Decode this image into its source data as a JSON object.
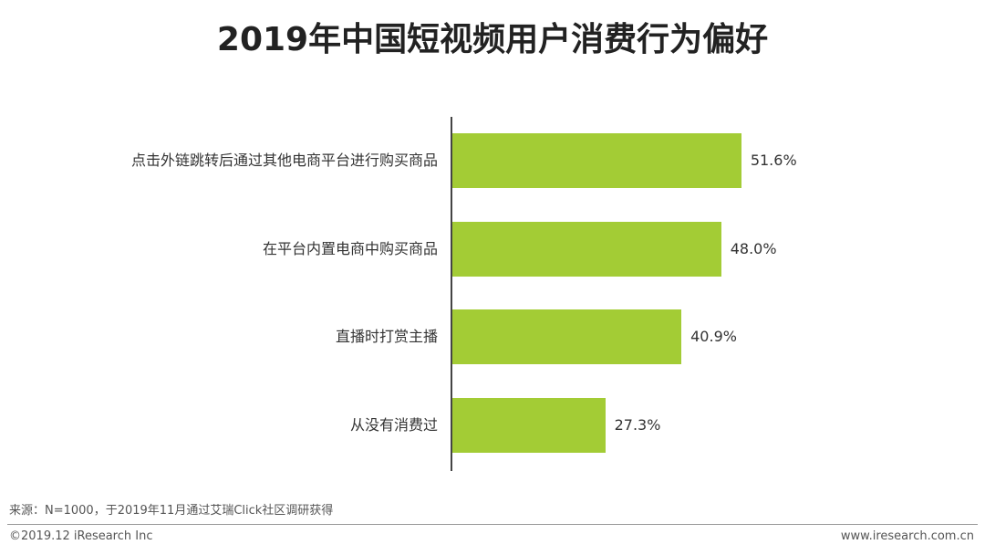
{
  "chart_data": {
    "type": "bar",
    "orientation": "horizontal",
    "title": "2019年中国短视频用户消费行为偏好",
    "categories": [
      "点击外链跳转后通过其他电商平台进行购买商品",
      "在平台内置电商中购买商品",
      "直播时打赏主播",
      "从没有消费过"
    ],
    "values": [
      51.6,
      48.0,
      40.9,
      27.3
    ],
    "value_labels": [
      "51.6%",
      "48.0%",
      "40.9%",
      "27.3%"
    ],
    "color": "#a3cc35",
    "source": "来源：N=1000，于2019年11月通过艾瑞Click社区调研获得",
    "copyright": "©2019.12 iResearch Inc",
    "website": "www.iresearch.com.cn"
  }
}
